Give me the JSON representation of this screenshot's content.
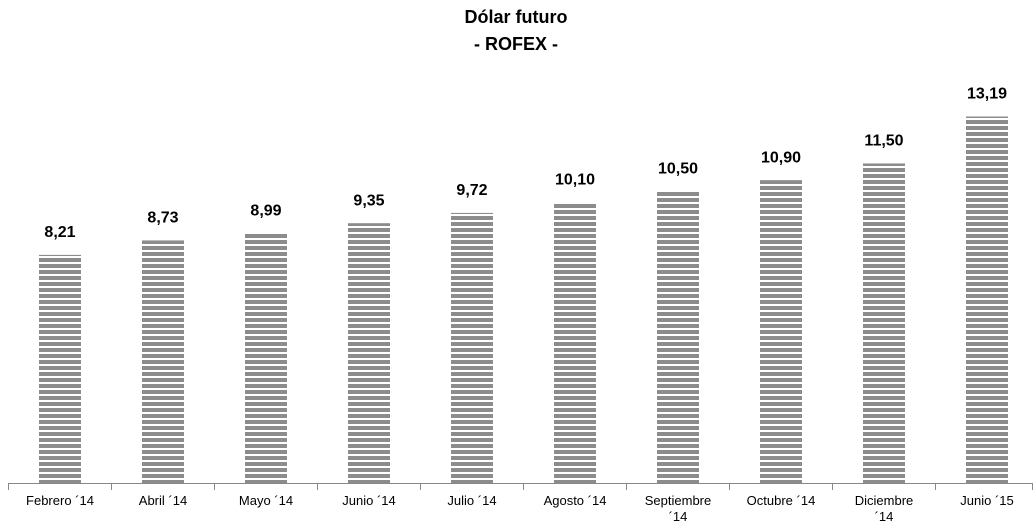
{
  "chart_data": {
    "type": "bar",
    "title": "Dólar futuro",
    "subtitle": "- ROFEX -",
    "categories": [
      "Febrero ´14",
      "Abril ´14",
      "Mayo ´14",
      "Junio ´14",
      "Julio ´14",
      "Agosto ´14",
      "Septiembre ´14",
      "Octubre ´14",
      "Diciembre ´14",
      "Junio ´15"
    ],
    "values": [
      8.21,
      8.73,
      8.99,
      9.35,
      9.72,
      10.1,
      10.5,
      10.9,
      11.5,
      13.19
    ],
    "value_labels": [
      "8,21",
      "8,73",
      "8,99",
      "9,35",
      "9,72",
      "10,10",
      "10,50",
      "10,90",
      "11,50",
      "13,19"
    ],
    "color": "#8c8c8c",
    "ylim": [
      0,
      14
    ]
  }
}
